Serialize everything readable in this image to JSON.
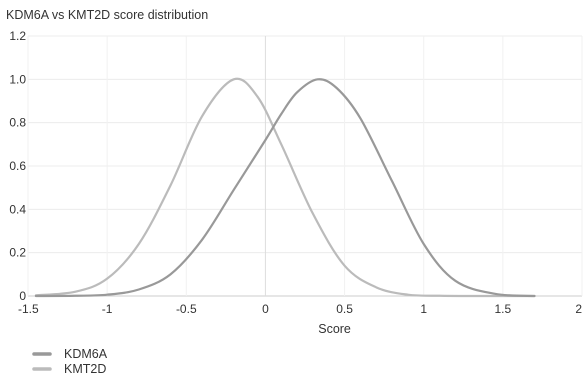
{
  "chart_data": {
    "type": "line",
    "title": "KDM6A vs KMT2D score distribution",
    "xlabel": "Score",
    "ylabel": "",
    "xlim": [
      -1.5,
      2
    ],
    "ylim": [
      0,
      1.2
    ],
    "x_ticks": [
      "-1.5",
      "-1",
      "-0.5",
      "0",
      "0.5",
      "1",
      "1.5",
      "2"
    ],
    "y_ticks": [
      "0",
      "0.2",
      "0.4",
      "0.6",
      "0.8",
      "1.0",
      "1.2"
    ],
    "x_tick_values": [
      -1.5,
      -1,
      -0.5,
      0,
      0.5,
      1,
      1.5,
      2
    ],
    "y_tick_values": [
      0,
      0.2,
      0.4,
      0.6,
      0.8,
      1.0,
      1.2
    ],
    "grid": true,
    "legend_position": "bottom-left",
    "series": [
      {
        "name": "KDM6A",
        "color": "#999999",
        "x": [
          -1.45,
          -1.2,
          -1.0,
          -0.8,
          -0.6,
          -0.4,
          -0.2,
          0.0,
          0.1,
          0.2,
          0.33,
          0.45,
          0.6,
          0.8,
          1.0,
          1.2,
          1.45,
          1.7
        ],
        "y": [
          0.0,
          0.001,
          0.006,
          0.03,
          0.1,
          0.26,
          0.49,
          0.72,
          0.84,
          0.94,
          1.0,
          0.96,
          0.82,
          0.53,
          0.24,
          0.07,
          0.01,
          0.0
        ]
      },
      {
        "name": "KMT2D",
        "color": "#bbbbbb",
        "x": [
          -1.45,
          -1.2,
          -1.0,
          -0.8,
          -0.6,
          -0.4,
          -0.2,
          -0.05,
          0.1,
          0.3,
          0.5,
          0.7,
          0.9,
          1.1,
          1.3,
          1.5,
          1.7
        ],
        "y": [
          0.003,
          0.02,
          0.08,
          0.24,
          0.51,
          0.83,
          1.0,
          0.92,
          0.7,
          0.38,
          0.14,
          0.04,
          0.006,
          0.001,
          0.0,
          0.0,
          0.0
        ]
      }
    ]
  }
}
